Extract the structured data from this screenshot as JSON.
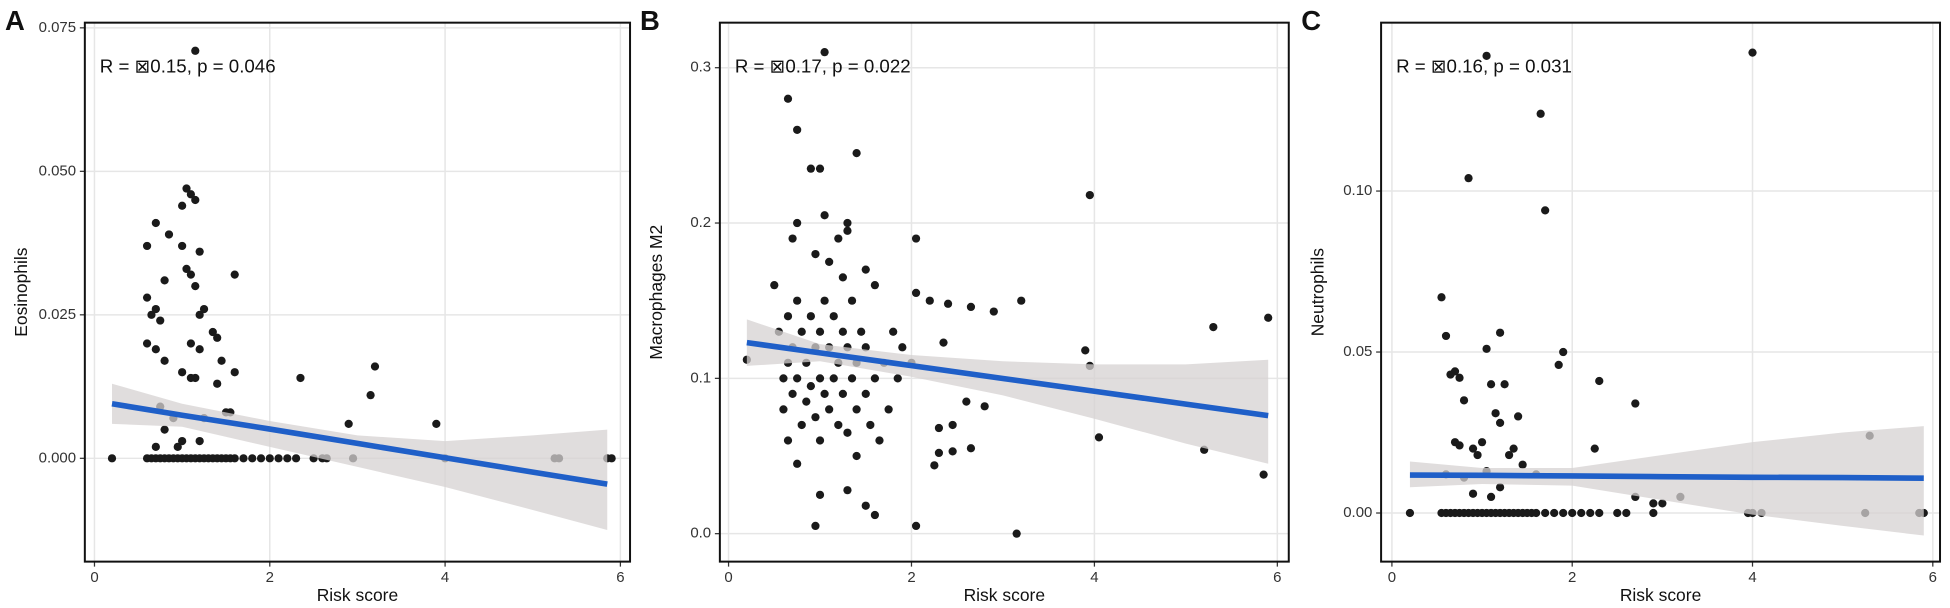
{
  "chart_data": [
    {
      "type": "scatter",
      "label": "A",
      "annotation": "R = ⊠0.15, p = 0.046",
      "xlabel": "Risk score",
      "ylabel": "Eosinophils",
      "xlim": [
        -0.11,
        6.11
      ],
      "ylim": [
        -0.018,
        0.0759
      ],
      "xticks": [
        0,
        2,
        4,
        6
      ],
      "yticks": [
        {
          "value": 0,
          "label": "0.000"
        },
        0.025,
        {
          "value": 0.05,
          "label": "0.050"
        },
        0.075
      ],
      "grid": true,
      "point_color": "#1a1a1a",
      "x": [
        0.2,
        0.6,
        0.65,
        0.7,
        0.75,
        0.8,
        0.85,
        0.9,
        0.95,
        1.0,
        1.05,
        1.1,
        1.15,
        1.2,
        1.25,
        1.3,
        1.35,
        1.4,
        1.45,
        1.5,
        1.55,
        1.6,
        1.7,
        1.8,
        1.9,
        2.0,
        2.1,
        2.2,
        2.3,
        2.5,
        2.6,
        2.65,
        2.95,
        4.0,
        5.25,
        5.3,
        5.85,
        5.9,
        1.15,
        1.05,
        1.1,
        1.0,
        1.15,
        0.85,
        0.7,
        0.6,
        1.0,
        1.2,
        1.05,
        1.1,
        0.8,
        1.6,
        1.15,
        1.25,
        1.2,
        0.6,
        0.65,
        0.7,
        0.75,
        0.6,
        0.7,
        1.35,
        1.4,
        1.1,
        1.2,
        0.8,
        1.45,
        1.0,
        1.1,
        1.15,
        1.6,
        1.4,
        0.75,
        1.25,
        1.5,
        1.55,
        2.35,
        3.2,
        3.15,
        0.8,
        1.0,
        1.2,
        0.9,
        2.9,
        3.9,
        0.95,
        0.7
      ],
      "y": [
        0,
        0,
        0,
        0,
        0,
        0,
        0,
        0,
        0,
        0,
        0,
        0,
        0,
        0,
        0,
        0,
        0,
        0,
        0,
        0,
        0,
        0,
        0,
        0,
        0,
        0,
        0,
        0,
        0,
        0,
        0,
        0,
        0,
        0,
        0,
        0,
        0,
        0,
        0.071,
        0.047,
        0.046,
        0.044,
        0.045,
        0.039,
        0.041,
        0.037,
        0.037,
        0.036,
        0.033,
        0.032,
        0.031,
        0.032,
        0.03,
        0.026,
        0.025,
        0.028,
        0.025,
        0.026,
        0.024,
        0.02,
        0.019,
        0.022,
        0.021,
        0.02,
        0.019,
        0.017,
        0.017,
        0.015,
        0.014,
        0.014,
        0.015,
        0.013,
        0.009,
        0.007,
        0.008,
        0.008,
        0.014,
        0.016,
        0.011,
        0.005,
        0.003,
        0.003,
        0.007,
        0.006,
        0.006,
        0.002,
        0.002
      ],
      "fit": {
        "color": "#1f5fc8",
        "band_color": "#d6d2d2",
        "x": [
          0.2,
          1,
          2,
          3,
          4,
          5,
          5.85
        ],
        "y": [
          0.0095,
          0.0075,
          0.0051,
          0.0026,
          0.0001,
          -0.0024,
          -0.0045
        ],
        "lower": [
          0.006,
          0.0055,
          0.002,
          -0.0015,
          -0.005,
          -0.009,
          -0.0125
        ],
        "upper": [
          0.013,
          0.0095,
          0.0065,
          0.004,
          0.003,
          0.004,
          0.005
        ]
      }
    },
    {
      "type": "scatter",
      "label": "B",
      "annotation": "R = ⊠0.17, p = 0.022",
      "xlabel": "Risk score",
      "ylabel": "Macrophages M2",
      "xlim": [
        -0.095,
        6.125
      ],
      "ylim": [
        -0.018,
        0.329
      ],
      "xticks": [
        0,
        2,
        4,
        6
      ],
      "yticks": [
        {
          "value": 0,
          "label": "0.0"
        },
        0.1,
        0.2,
        0.3
      ],
      "grid": true,
      "point_color": "#1a1a1a",
      "x": [
        0.2,
        1.05,
        0.65,
        0.75,
        0.9,
        1.0,
        1.4,
        3.95,
        0.75,
        1.05,
        1.2,
        0.7,
        1.3,
        1.3,
        2.05,
        0.95,
        1.1,
        1.5,
        1.25,
        1.6,
        2.05,
        2.2,
        3.2,
        2.4,
        2.65,
        2.9,
        5.9,
        5.3,
        3.9,
        3.95,
        4.05,
        5.2,
        5.85,
        3.15,
        2.05,
        0.95,
        1.6,
        1.0,
        1.3,
        1.5,
        0.75,
        1.4,
        0.65,
        2.45,
        2.6,
        2.8,
        2.65,
        2.45,
        2.25,
        2.3,
        2.3,
        2.35,
        0.5,
        0.55,
        0.6,
        0.6,
        0.65,
        0.65,
        0.7,
        0.7,
        0.75,
        0.75,
        0.8,
        0.8,
        0.85,
        0.85,
        0.9,
        0.9,
        0.95,
        0.95,
        1.0,
        1.0,
        1.0,
        1.05,
        1.05,
        1.1,
        1.1,
        1.15,
        1.15,
        1.2,
        1.2,
        1.25,
        1.25,
        1.3,
        1.3,
        1.35,
        1.35,
        1.4,
        1.4,
        1.45,
        1.5,
        1.5,
        1.55,
        1.6,
        1.65,
        1.7,
        1.75,
        1.8,
        1.85,
        1.9,
        2.0
      ],
      "y": [
        0.112,
        0.31,
        0.28,
        0.26,
        0.235,
        0.235,
        0.245,
        0.218,
        0.2,
        0.205,
        0.19,
        0.19,
        0.195,
        0.2,
        0.19,
        0.18,
        0.175,
        0.17,
        0.165,
        0.16,
        0.155,
        0.15,
        0.15,
        0.148,
        0.146,
        0.143,
        0.139,
        0.133,
        0.118,
        0.108,
        0.062,
        0.054,
        0.038,
        0.0,
        0.005,
        0.005,
        0.012,
        0.025,
        0.028,
        0.018,
        0.045,
        0.05,
        0.06,
        0.07,
        0.085,
        0.082,
        0.055,
        0.053,
        0.044,
        0.052,
        0.068,
        0.123,
        0.16,
        0.13,
        0.1,
        0.08,
        0.14,
        0.11,
        0.09,
        0.12,
        0.15,
        0.1,
        0.07,
        0.13,
        0.11,
        0.085,
        0.14,
        0.095,
        0.12,
        0.075,
        0.1,
        0.13,
        0.06,
        0.15,
        0.09,
        0.12,
        0.08,
        0.14,
        0.1,
        0.11,
        0.07,
        0.13,
        0.09,
        0.12,
        0.065,
        0.15,
        0.1,
        0.11,
        0.08,
        0.13,
        0.09,
        0.12,
        0.07,
        0.1,
        0.06,
        0.11,
        0.08,
        0.13,
        0.1,
        0.12,
        0.11
      ],
      "fit": {
        "color": "#1f5fc8",
        "band_color": "#d6d2d2",
        "x": [
          0.2,
          1,
          2,
          3,
          4,
          5,
          5.9
        ],
        "y": [
          0.123,
          0.1164,
          0.1082,
          0.0999,
          0.0917,
          0.0834,
          0.076
        ],
        "lower": [
          0.108,
          0.111,
          0.101,
          0.089,
          0.074,
          0.058,
          0.045
        ],
        "upper": [
          0.138,
          0.122,
          0.115,
          0.111,
          0.109,
          0.109,
          0.112
        ]
      }
    },
    {
      "type": "scatter",
      "label": "C",
      "annotation": "R = ⊠0.16, p = 0.031",
      "xlabel": "Risk score",
      "ylabel": "Neutrophils",
      "xlim": [
        -0.12,
        6.08
      ],
      "ylim": [
        -0.0151,
        0.1523
      ],
      "xticks": [
        0,
        2,
        4,
        6
      ],
      "yticks": [
        {
          "value": 0,
          "label": "0.00"
        },
        0.05,
        {
          "value": 0.1,
          "label": "0.10"
        }
      ],
      "grid": true,
      "point_color": "#1a1a1a",
      "x": [
        0.2,
        0.55,
        0.6,
        0.65,
        0.7,
        0.75,
        0.8,
        0.85,
        0.9,
        0.95,
        1.0,
        1.05,
        1.1,
        1.15,
        1.2,
        1.25,
        1.3,
        1.35,
        1.4,
        1.45,
        1.5,
        1.55,
        1.6,
        1.7,
        1.8,
        1.9,
        2.0,
        2.1,
        2.2,
        2.3,
        2.5,
        2.6,
        2.9,
        3.95,
        4.0,
        4.1,
        5.25,
        5.85,
        5.9,
        1.05,
        4.0,
        1.65,
        0.85,
        1.7,
        0.55,
        0.6,
        1.2,
        1.05,
        1.9,
        1.85,
        0.7,
        0.75,
        0.65,
        1.1,
        1.25,
        2.3,
        2.7,
        0.8,
        1.15,
        1.4,
        1.2,
        0.7,
        0.75,
        0.9,
        1.0,
        1.35,
        1.3,
        0.95,
        1.45,
        1.05,
        1.6,
        0.6,
        0.8,
        2.25,
        5.3,
        1.2,
        0.9,
        1.1,
        2.7,
        3.2,
        3.0,
        2.9
      ],
      "y": [
        0,
        0,
        0,
        0,
        0,
        0,
        0,
        0,
        0,
        0,
        0,
        0,
        0,
        0,
        0,
        0,
        0,
        0,
        0,
        0,
        0,
        0,
        0,
        0,
        0,
        0,
        0,
        0,
        0,
        0,
        0,
        0,
        0,
        0,
        0,
        0,
        0,
        0,
        0,
        0.142,
        0.143,
        0.124,
        0.104,
        0.094,
        0.067,
        0.055,
        0.056,
        0.051,
        0.05,
        0.046,
        0.044,
        0.042,
        0.043,
        0.04,
        0.04,
        0.041,
        0.034,
        0.035,
        0.031,
        0.03,
        0.028,
        0.022,
        0.021,
        0.02,
        0.022,
        0.02,
        0.018,
        0.018,
        0.015,
        0.013,
        0.012,
        0.012,
        0.011,
        0.02,
        0.024,
        0.008,
        0.006,
        0.005,
        0.005,
        0.005,
        0.003,
        0.003
      ],
      "fit": {
        "color": "#1f5fc8",
        "band_color": "#d6d2d2",
        "x": [
          0.2,
          1,
          2,
          3,
          4,
          5,
          5.9
        ],
        "y": [
          0.0118,
          0.0117,
          0.0115,
          0.0113,
          0.0111,
          0.011,
          0.0108
        ],
        "lower": [
          0.008,
          0.009,
          0.0085,
          0.004,
          -0.0005,
          -0.004,
          -0.007
        ],
        "upper": [
          0.016,
          0.014,
          0.014,
          0.018,
          0.022,
          0.025,
          0.027
        ]
      }
    }
  ]
}
